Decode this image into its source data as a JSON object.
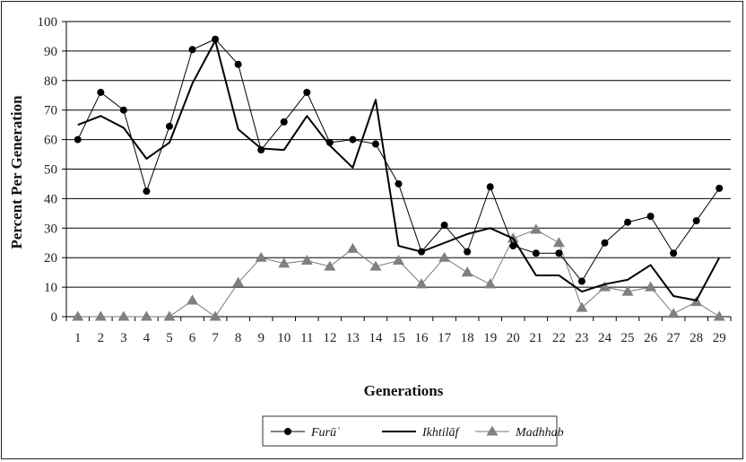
{
  "chart_data": {
    "type": "line",
    "xlabel": "Generations",
    "ylabel": "Percent Per Generation",
    "x": [
      1,
      2,
      3,
      4,
      5,
      6,
      7,
      8,
      9,
      10,
      11,
      12,
      13,
      14,
      15,
      16,
      17,
      18,
      19,
      20,
      21,
      22,
      23,
      24,
      25,
      26,
      27,
      28,
      29
    ],
    "ylim": [
      0,
      100
    ],
    "yticks": [
      0,
      10,
      20,
      30,
      40,
      50,
      60,
      70,
      80,
      90,
      100
    ],
    "grid": "horizontal",
    "legend_position": "bottom-center",
    "series": [
      {
        "name": "Furūʿ",
        "marker": "circle",
        "color": "#000000",
        "values": [
          60,
          76,
          70,
          42.5,
          64.5,
          90.5,
          94,
          85.5,
          56.5,
          66,
          76,
          59,
          60,
          58.5,
          45,
          22,
          31,
          22,
          44,
          24,
          21.5,
          21.5,
          12,
          25,
          32,
          34,
          21.5,
          32.5,
          43.5
        ]
      },
      {
        "name": "Ikhtilāf",
        "marker": "none",
        "color": "#000000",
        "values": [
          65,
          68,
          64,
          53.5,
          59,
          79,
          93.5,
          63.5,
          57,
          56.5,
          68,
          58,
          50.5,
          73.5,
          24,
          22,
          25,
          28,
          30,
          26.5,
          14,
          14,
          8.5,
          11,
          12.5,
          17.5,
          7,
          5.5,
          20
        ]
      },
      {
        "name": "Madhhab",
        "marker": "triangle",
        "color": "#808080",
        "values": [
          0,
          0,
          0,
          0,
          0,
          5.5,
          0,
          11.5,
          20,
          18,
          19,
          17,
          23,
          17,
          19,
          11,
          20,
          15,
          11,
          26.5,
          29.5,
          25,
          3,
          10,
          8.5,
          10,
          1,
          5,
          0
        ]
      }
    ]
  }
}
